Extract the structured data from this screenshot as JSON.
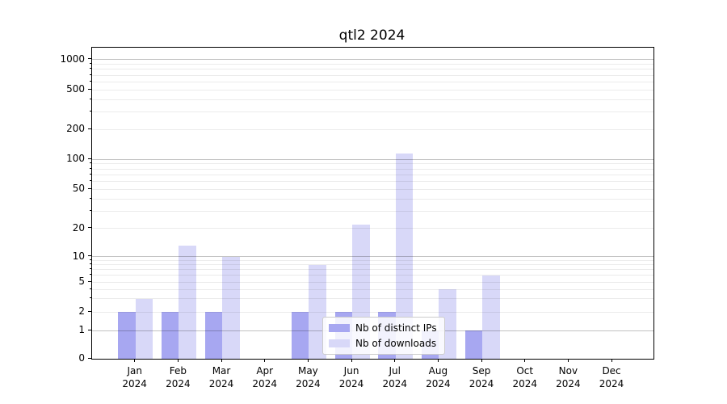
{
  "title": "qtl2 2024",
  "chart_data": {
    "type": "bar",
    "title": "qtl2 2024",
    "categories": [
      "Jan 2024",
      "Feb 2024",
      "Mar 2024",
      "Apr 2024",
      "May 2024",
      "Jun 2024",
      "Jul 2024",
      "Aug 2024",
      "Sep 2024",
      "Oct 2024",
      "Nov 2024",
      "Dec 2024"
    ],
    "series": [
      {
        "name": "Nb of distinct IPs",
        "color": "#a7a7f1",
        "values": [
          2,
          2,
          2,
          0,
          2,
          2,
          2,
          1,
          1,
          0,
          0,
          0
        ]
      },
      {
        "name": "Nb of downloads",
        "color": "#d8d8f8",
        "values": [
          3,
          13,
          10,
          0,
          8,
          22,
          115,
          4,
          6,
          0,
          0,
          0
        ]
      }
    ],
    "yscale": "symlog",
    "yticks": [
      0,
      1,
      2,
      5,
      10,
      20,
      50,
      100,
      200,
      500,
      1000
    ],
    "ylim": [
      0,
      1300
    ],
    "xlabel": "",
    "ylabel": "",
    "grid": true,
    "legend_position": "lower center"
  }
}
